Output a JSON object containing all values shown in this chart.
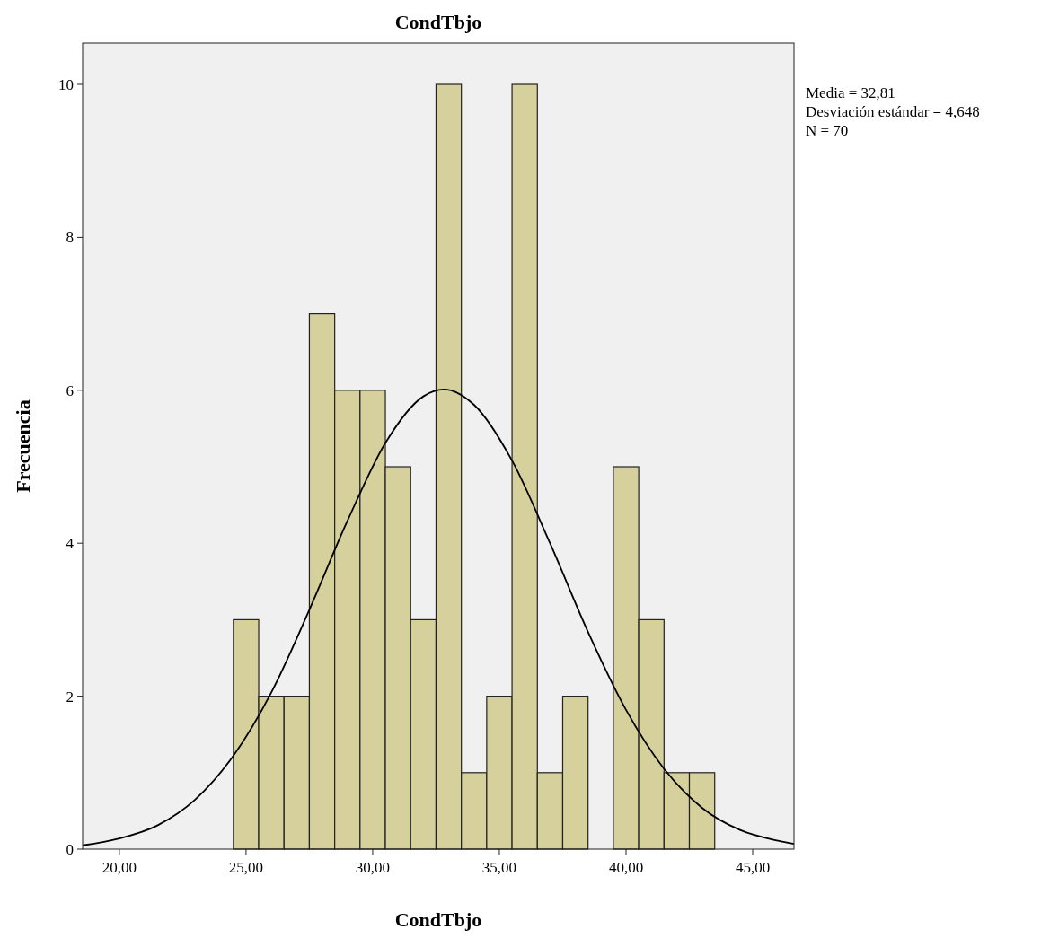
{
  "chart_data": {
    "type": "histogram",
    "title": "CondTbjo",
    "xlabel": "CondTbjo",
    "ylabel": "Frecuencia",
    "bins": [
      24.5,
      25.5,
      26.5,
      27.5,
      28.5,
      29.5,
      30.5,
      31.5,
      32.5,
      33.5,
      34.5,
      35.5,
      36.5,
      37.5,
      38.5,
      39.5,
      40.5,
      41.5,
      42.5,
      43.5
    ],
    "values": [
      3,
      2,
      2,
      7,
      6,
      6,
      5,
      3,
      10,
      1,
      2,
      10,
      1,
      2,
      0,
      5,
      3,
      1,
      1
    ],
    "color": "#d5d09c",
    "series": [
      {
        "type": "line",
        "color": "#000000",
        "x": [
          18.55,
          20,
          21.5,
          23,
          24.5,
          26,
          27.5,
          29,
          30.5,
          32,
          32.81,
          34,
          35.5,
          37,
          38.5,
          40,
          41.5,
          43,
          44.5,
          46,
          46.63
        ],
        "values": [
          0.05,
          0.14,
          0.31,
          0.65,
          1.22,
          2.05,
          3.13,
          4.29,
          5.31,
          5.92,
          6.01,
          5.81,
          5.08,
          4,
          2.84,
          1.82,
          1.05,
          0.54,
          0.25,
          0.11,
          0.07
        ]
      }
    ],
    "xlim": [
      18.55,
      46.63
    ],
    "xticks": [
      {
        "value": 20,
        "label": "20,00"
      },
      {
        "value": 25,
        "label": "25,00"
      },
      {
        "value": 30,
        "label": "30,00"
      },
      {
        "value": 35,
        "label": "35,00"
      },
      {
        "value": 40,
        "label": "40,00"
      },
      {
        "value": 45,
        "label": "45,00"
      }
    ],
    "ylim": [
      0,
      10.54
    ],
    "yticks": [
      0,
      2,
      4,
      6,
      8,
      10
    ],
    "annotations": [
      "Media = 32,81",
      "Desviación estándar = 4,648",
      "N = 70"
    ]
  }
}
